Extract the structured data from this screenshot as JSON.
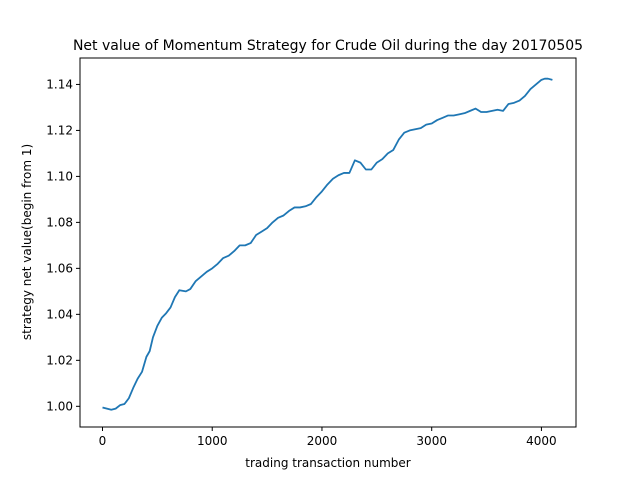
{
  "chart_data": {
    "type": "line",
    "title": "Net value of Momentum Strategy for Crude Oil during the day 20170505",
    "xlabel": "trading transaction number",
    "ylabel": "strategy net value(begin from 1)",
    "xlim": [
      -205,
      4315
    ],
    "ylim": [
      0.991,
      1.1515
    ],
    "xticks": [
      0,
      1000,
      2000,
      3000,
      4000
    ],
    "xtick_labels": [
      "0",
      "1000",
      "2000",
      "3000",
      "4000"
    ],
    "yticks": [
      1.0,
      1.02,
      1.04,
      1.06,
      1.08,
      1.1,
      1.12,
      1.14
    ],
    "ytick_labels": [
      "1.00",
      "1.02",
      "1.04",
      "1.06",
      "1.08",
      "1.10",
      "1.12",
      "1.14"
    ],
    "grid": false,
    "line_color": "#1f77b4",
    "series": [
      {
        "x": [
          0,
          40,
          80,
          120,
          160,
          200,
          240,
          280,
          320,
          360,
          400,
          430,
          460,
          500,
          540,
          580,
          620,
          660,
          700,
          760,
          800,
          850,
          900,
          950,
          1000,
          1050,
          1100,
          1150,
          1200,
          1250,
          1300,
          1350,
          1400,
          1450,
          1500,
          1550,
          1600,
          1650,
          1700,
          1750,
          1800,
          1850,
          1900,
          1950,
          2000,
          2050,
          2100,
          2150,
          2200,
          2250,
          2300,
          2350,
          2400,
          2450,
          2500,
          2550,
          2600,
          2650,
          2700,
          2750,
          2800,
          2850,
          2900,
          2950,
          3000,
          3050,
          3100,
          3150,
          3200,
          3250,
          3300,
          3350,
          3400,
          3450,
          3500,
          3550,
          3600,
          3650,
          3700,
          3750,
          3800,
          3850,
          3900,
          3950,
          4000,
          4030,
          4060,
          4100
        ],
        "values": [
          0.9995,
          0.999,
          0.9985,
          0.999,
          1.0005,
          1.001,
          1.0035,
          1.008,
          1.012,
          1.015,
          1.0215,
          1.024,
          1.03,
          1.035,
          1.0385,
          1.0405,
          1.043,
          1.0475,
          1.0505,
          1.05,
          1.051,
          1.0545,
          1.0565,
          1.0585,
          1.06,
          1.062,
          1.0645,
          1.0655,
          1.0675,
          1.07,
          1.07,
          1.071,
          1.0745,
          1.076,
          1.0775,
          1.08,
          1.082,
          1.083,
          1.085,
          1.0865,
          1.0865,
          1.087,
          1.088,
          1.091,
          1.0935,
          1.0965,
          1.099,
          1.1005,
          1.1015,
          1.1015,
          1.107,
          1.106,
          1.103,
          1.103,
          1.106,
          1.1075,
          1.11,
          1.1115,
          1.116,
          1.119,
          1.12,
          1.1205,
          1.121,
          1.1225,
          1.123,
          1.1245,
          1.1255,
          1.1265,
          1.1265,
          1.127,
          1.1275,
          1.1285,
          1.1295,
          1.128,
          1.128,
          1.1285,
          1.129,
          1.1285,
          1.1315,
          1.132,
          1.133,
          1.135,
          1.138,
          1.14,
          1.142,
          1.1425,
          1.1425,
          1.142
        ]
      }
    ]
  }
}
